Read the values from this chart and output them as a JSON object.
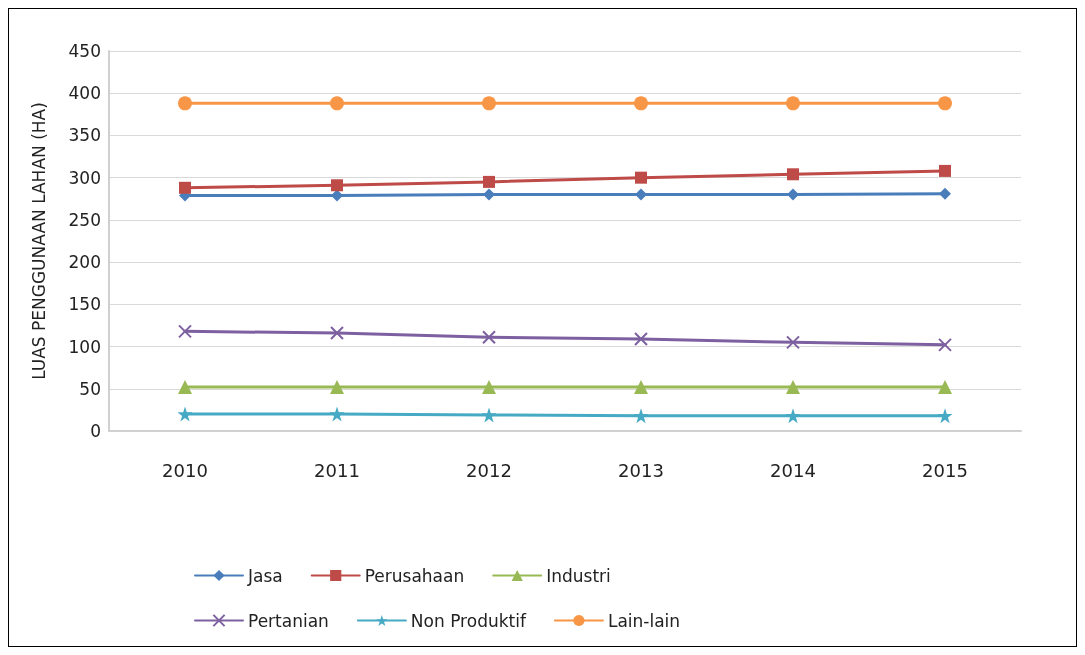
{
  "chart_data": {
    "type": "line",
    "ylabel": "LUAS PENGGUNAAN LAHAN (HA)",
    "categories": [
      "2010",
      "2011",
      "2012",
      "2013",
      "2014",
      "2015"
    ],
    "ylim": [
      0,
      450
    ],
    "yticks": [
      0,
      50,
      100,
      150,
      200,
      250,
      300,
      350,
      400,
      450
    ],
    "grid": "y",
    "legend": "bottom",
    "line_style": "solid",
    "series": [
      {
        "name": "Jasa",
        "color": "#4a7ebb",
        "marker": "diamond",
        "values": [
          279,
          279,
          280,
          280,
          280,
          281
        ]
      },
      {
        "name": "Perusahaan",
        "color": "#be4b48",
        "marker": "square",
        "values": [
          288,
          291,
          295,
          300,
          304,
          308
        ]
      },
      {
        "name": "Industri",
        "color": "#98b954",
        "marker": "triangle",
        "values": [
          52,
          52,
          52,
          52,
          52,
          52
        ]
      },
      {
        "name": "Pertanian",
        "color": "#7d60a0",
        "marker": "cross",
        "values": [
          118,
          116,
          111,
          109,
          105,
          102
        ]
      },
      {
        "name": "Non Produktif",
        "color": "#46aac5",
        "marker": "star",
        "values": [
          20,
          20,
          19,
          18,
          18,
          18
        ]
      },
      {
        "name": "Lain-lain",
        "color": "#f79646",
        "marker": "circle",
        "values": [
          388,
          388,
          388,
          388,
          388,
          388
        ]
      }
    ]
  }
}
